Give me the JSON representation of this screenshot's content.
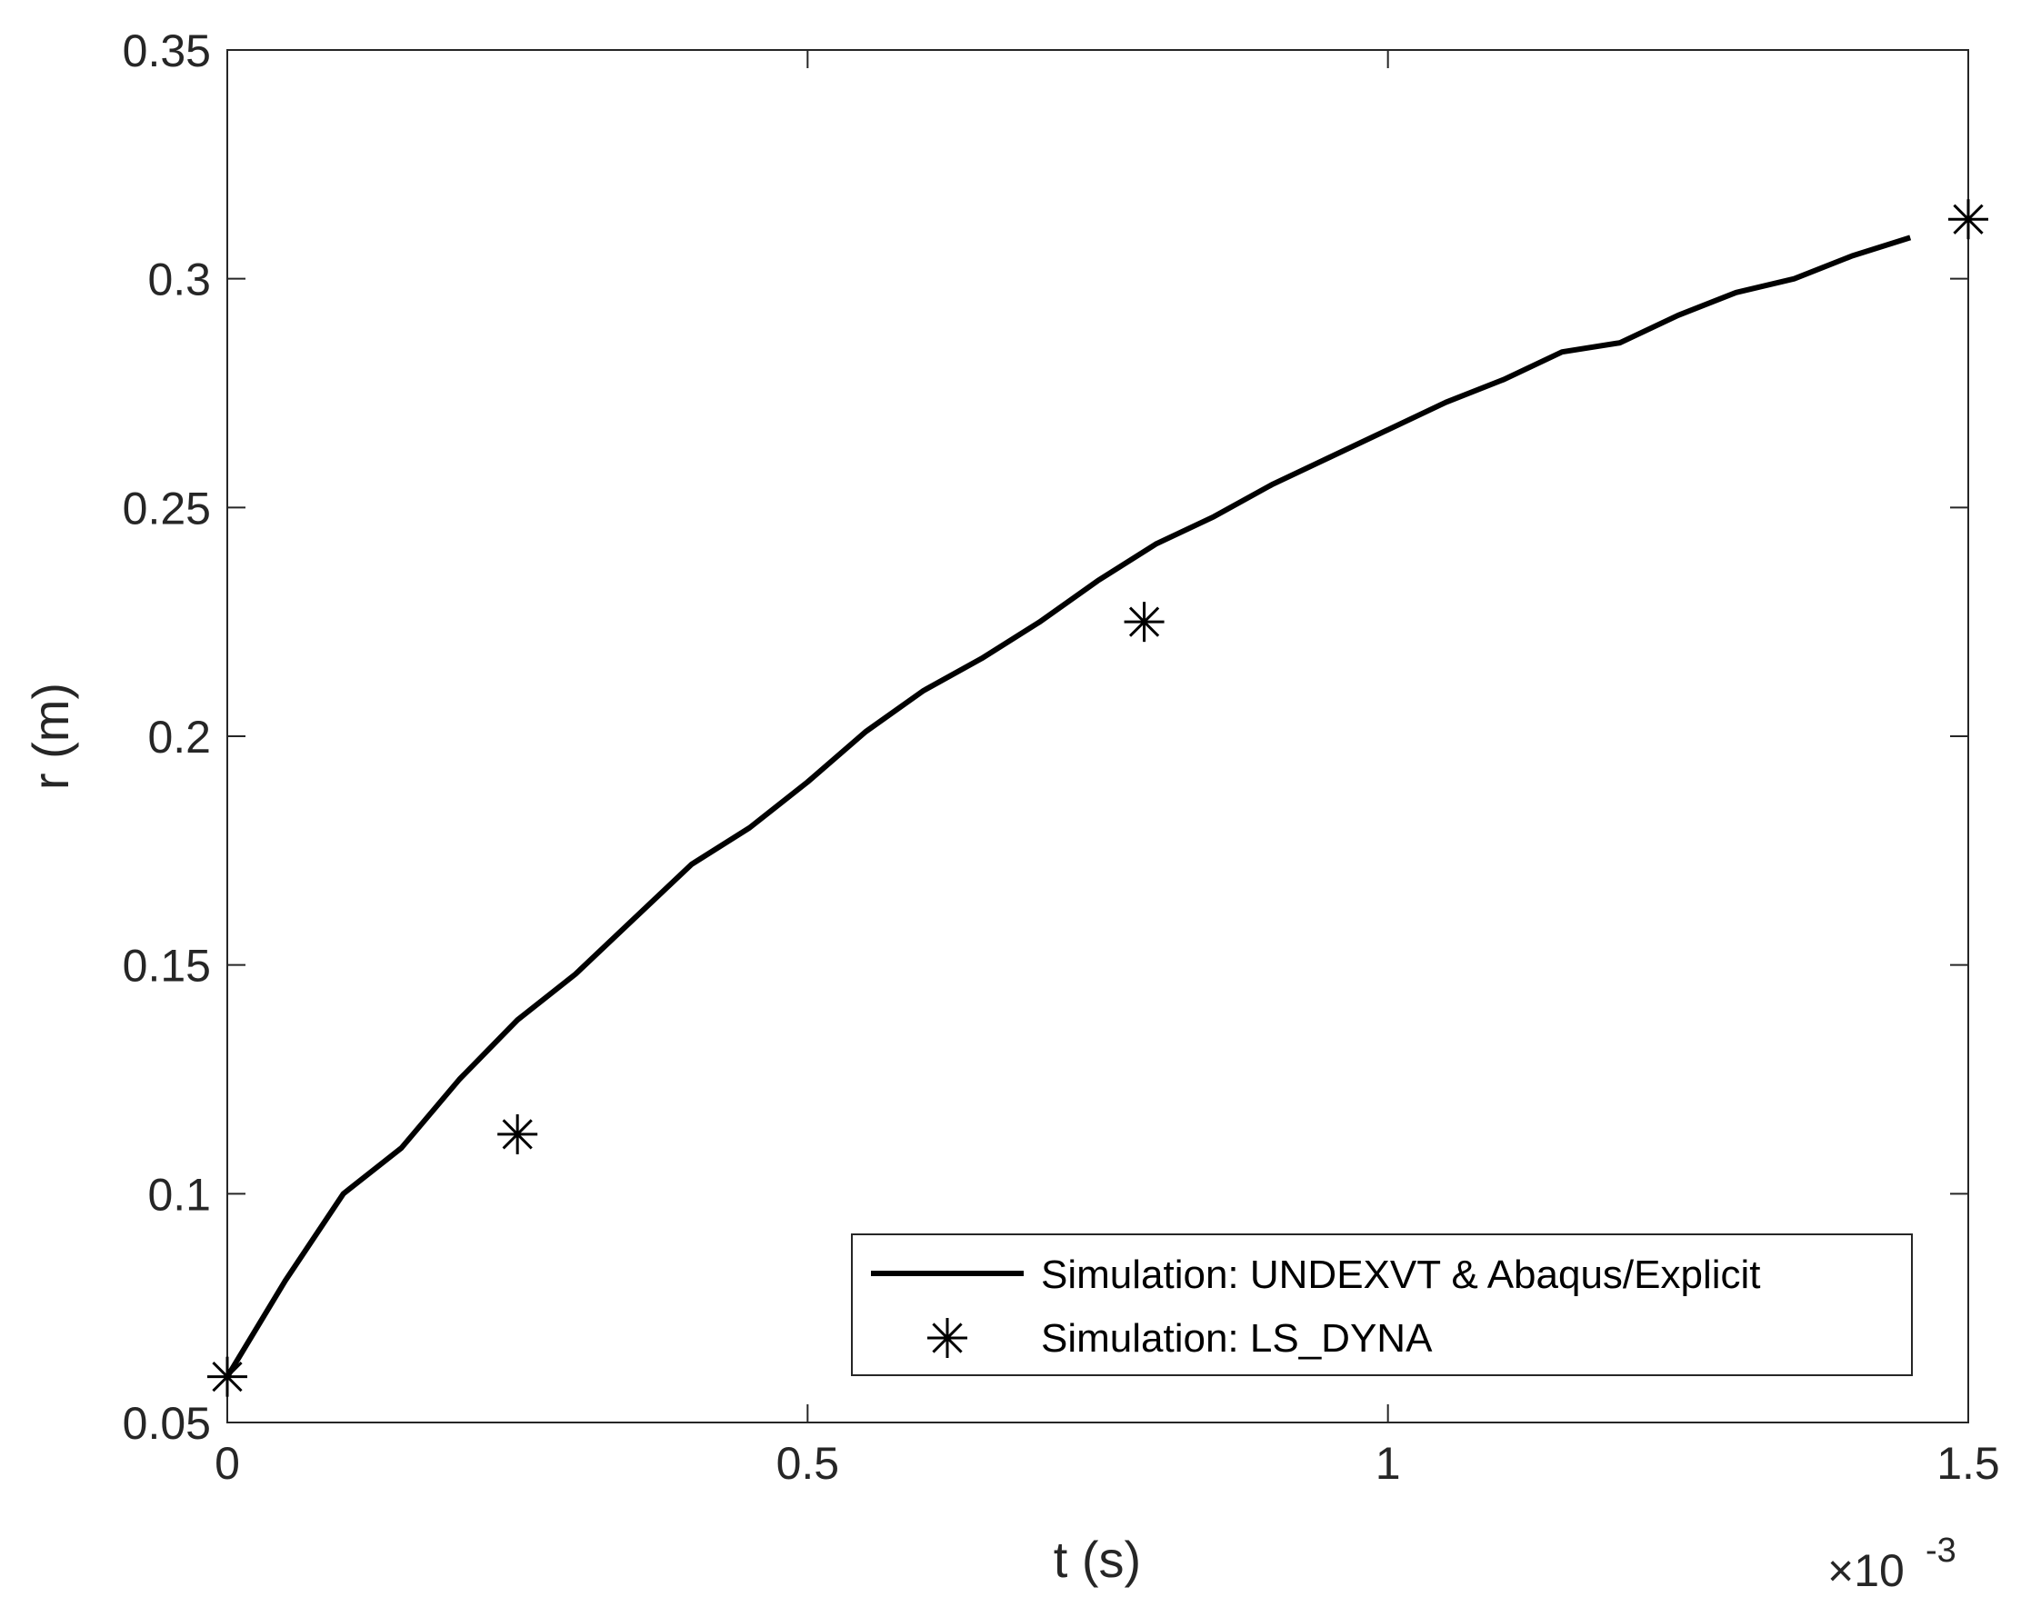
{
  "chart_data": {
    "type": "line",
    "title": "",
    "xlabel": "t (s)",
    "ylabel": "r (m)",
    "x_exponent_label": "×10",
    "x_exponent_power": "-3",
    "xlim": [
      0,
      1.5
    ],
    "ylim": [
      0.05,
      0.35
    ],
    "xticks": [
      0,
      0.5,
      1,
      1.5
    ],
    "xtick_labels": [
      "0",
      "0.5",
      "1",
      "1.5"
    ],
    "yticks": [
      0.05,
      0.1,
      0.15,
      0.2,
      0.25,
      0.3,
      0.35
    ],
    "ytick_labels": [
      "0.05",
      "0.1",
      "0.15",
      "0.2",
      "0.25",
      "0.3",
      "0.35"
    ],
    "grid": false,
    "legend_position": "bottom-right",
    "series": [
      {
        "name": "Simulation: UNDEXVT & Abaqus/Explicit",
        "style": "line",
        "color": "#000000",
        "x": [
          0,
          0.05,
          0.1,
          0.15,
          0.2,
          0.25,
          0.3,
          0.35,
          0.4,
          0.45,
          0.5,
          0.55,
          0.6,
          0.65,
          0.7,
          0.75,
          0.8,
          0.85,
          0.9,
          0.95,
          1.0,
          1.05,
          1.1,
          1.15,
          1.2,
          1.25,
          1.3,
          1.35,
          1.4,
          1.45
        ],
        "y": [
          0.06,
          0.081,
          0.1,
          0.11,
          0.125,
          0.138,
          0.148,
          0.16,
          0.172,
          0.18,
          0.19,
          0.201,
          0.21,
          0.217,
          0.225,
          0.234,
          0.242,
          0.248,
          0.255,
          0.261,
          0.267,
          0.273,
          0.278,
          0.284,
          0.286,
          0.292,
          0.297,
          0.3,
          0.305,
          0.309
        ]
      },
      {
        "name": "Simulation: LS_DYNA",
        "style": "marker-asterisk",
        "color": "#000000",
        "x": [
          0,
          0.25,
          0.79,
          1.5
        ],
        "y": [
          0.06,
          0.113,
          0.225,
          0.313
        ]
      }
    ]
  }
}
